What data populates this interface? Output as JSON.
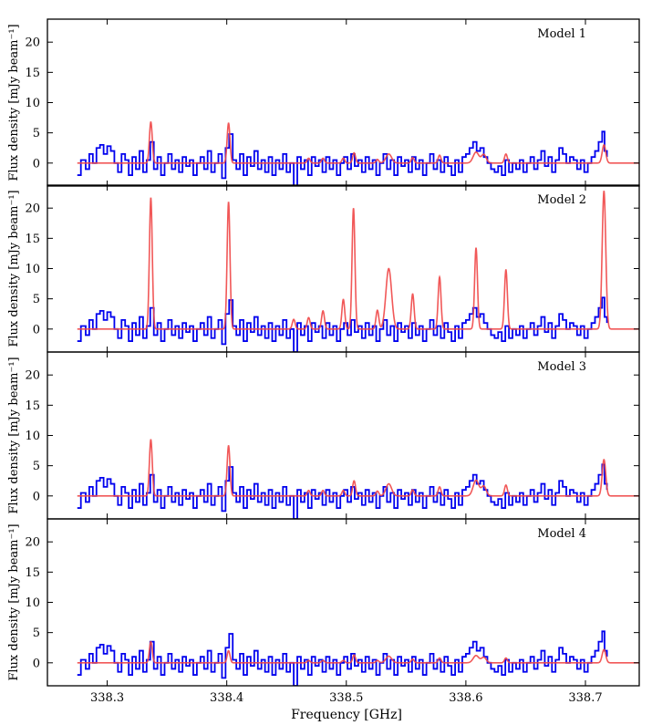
{
  "chart_data": {
    "type": "line",
    "xlabel": "Frequency [GHz]",
    "ylabel": "Flux density [mJy beam⁻¹]",
    "xlim": [
      338.25,
      338.745
    ],
    "ylim": [
      -3.8,
      23.8
    ],
    "x_ticks": [
      338.3,
      338.4,
      338.5,
      338.6,
      338.7
    ],
    "x_tick_labels": [
      "338.3",
      "338.4",
      "338.5",
      "338.6",
      "338.7"
    ],
    "y_ticks": [
      0,
      5,
      10,
      15,
      20
    ],
    "y_tick_labels": [
      "0",
      "5",
      "10",
      "15",
      "20"
    ],
    "observed": {
      "color": "#0000ee",
      "style": "steps",
      "x_start": 338.275,
      "x_end": 338.718,
      "anchors": [
        [
          338.275,
          -2.0
        ],
        [
          338.278,
          0.5
        ],
        [
          338.282,
          -1.0
        ],
        [
          338.285,
          1.5
        ],
        [
          338.288,
          0.0
        ],
        [
          338.291,
          2.5
        ],
        [
          338.294,
          3.0
        ],
        [
          338.297,
          1.5
        ],
        [
          338.3,
          2.8
        ],
        [
          338.303,
          2.0
        ],
        [
          338.306,
          0.0
        ],
        [
          338.309,
          -1.5
        ],
        [
          338.312,
          1.5
        ],
        [
          338.315,
          0.5
        ],
        [
          338.318,
          -2.0
        ],
        [
          338.321,
          1.0
        ],
        [
          338.324,
          -1.0
        ],
        [
          338.327,
          2.0
        ],
        [
          338.33,
          -1.5
        ],
        [
          338.333,
          0.5
        ],
        [
          338.336,
          3.5
        ],
        [
          338.339,
          -1.0
        ],
        [
          338.342,
          1.0
        ],
        [
          338.345,
          -2.0
        ],
        [
          338.348,
          0.0
        ],
        [
          338.351,
          1.5
        ],
        [
          338.354,
          -1.0
        ],
        [
          338.357,
          0.5
        ],
        [
          338.36,
          -1.5
        ],
        [
          338.363,
          1.0
        ],
        [
          338.366,
          -0.5
        ],
        [
          338.369,
          0.5
        ],
        [
          338.372,
          -2.0
        ],
        [
          338.375,
          0.0
        ],
        [
          338.378,
          1.0
        ],
        [
          338.381,
          -1.0
        ],
        [
          338.384,
          2.0
        ],
        [
          338.387,
          -1.5
        ],
        [
          338.39,
          0.0
        ],
        [
          338.393,
          1.5
        ],
        [
          338.396,
          -2.5
        ],
        [
          338.399,
          2.5
        ],
        [
          338.402,
          4.8
        ],
        [
          338.405,
          0.5
        ],
        [
          338.408,
          -1.0
        ],
        [
          338.411,
          1.5
        ],
        [
          338.414,
          -2.0
        ],
        [
          338.417,
          1.0
        ],
        [
          338.42,
          -0.5
        ],
        [
          338.423,
          2.0
        ],
        [
          338.426,
          -1.0
        ],
        [
          338.429,
          0.5
        ],
        [
          338.432,
          -1.5
        ],
        [
          338.435,
          1.0
        ],
        [
          338.438,
          -2.0
        ],
        [
          338.441,
          0.5
        ],
        [
          338.444,
          -1.0
        ],
        [
          338.447,
          1.5
        ],
        [
          338.45,
          -1.5
        ],
        [
          338.453,
          0.0
        ],
        [
          338.456,
          -3.8
        ],
        [
          338.459,
          1.0
        ],
        [
          338.462,
          -1.0
        ],
        [
          338.465,
          0.5
        ],
        [
          338.468,
          -2.0
        ],
        [
          338.471,
          1.0
        ],
        [
          338.474,
          -0.5
        ],
        [
          338.477,
          0.5
        ],
        [
          338.48,
          -1.5
        ],
        [
          338.483,
          1.0
        ],
        [
          338.486,
          -1.0
        ],
        [
          338.489,
          0.5
        ],
        [
          338.492,
          -2.0
        ],
        [
          338.495,
          0.0
        ],
        [
          338.498,
          1.0
        ],
        [
          338.501,
          -1.0
        ],
        [
          338.504,
          1.5
        ],
        [
          338.507,
          -0.5
        ],
        [
          338.51,
          0.5
        ],
        [
          338.513,
          -1.5
        ],
        [
          338.516,
          1.0
        ],
        [
          338.519,
          -1.0
        ],
        [
          338.522,
          0.5
        ],
        [
          338.525,
          -2.0
        ],
        [
          338.528,
          0.0
        ],
        [
          338.531,
          1.5
        ],
        [
          338.534,
          -1.0
        ],
        [
          338.537,
          0.5
        ],
        [
          338.54,
          -2.0
        ],
        [
          338.543,
          1.0
        ],
        [
          338.546,
          -0.5
        ],
        [
          338.549,
          0.5
        ],
        [
          338.552,
          -1.5
        ],
        [
          338.555,
          1.0
        ],
        [
          338.558,
          -1.0
        ],
        [
          338.561,
          0.5
        ],
        [
          338.564,
          -2.0
        ],
        [
          338.567,
          0.0
        ],
        [
          338.57,
          1.5
        ],
        [
          338.573,
          -1.0
        ],
        [
          338.576,
          0.5
        ],
        [
          338.579,
          -1.5
        ],
        [
          338.582,
          1.0
        ],
        [
          338.585,
          -0.5
        ],
        [
          338.588,
          -2.0
        ],
        [
          338.591,
          0.5
        ],
        [
          338.594,
          -1.5
        ],
        [
          338.597,
          1.0
        ],
        [
          338.6,
          1.5
        ],
        [
          338.603,
          2.5
        ],
        [
          338.606,
          3.5
        ],
        [
          338.609,
          2.0
        ],
        [
          338.612,
          2.5
        ],
        [
          338.615,
          1.0
        ],
        [
          338.618,
          0.0
        ],
        [
          338.621,
          -1.0
        ],
        [
          338.624,
          -1.5
        ],
        [
          338.627,
          -0.5
        ],
        [
          338.63,
          -2.0
        ],
        [
          338.633,
          0.5
        ],
        [
          338.636,
          -1.5
        ],
        [
          338.639,
          0.0
        ],
        [
          338.642,
          -1.0
        ],
        [
          338.645,
          0.5
        ],
        [
          338.648,
          -1.5
        ],
        [
          338.651,
          0.0
        ],
        [
          338.654,
          1.0
        ],
        [
          338.657,
          -1.0
        ],
        [
          338.66,
          0.5
        ],
        [
          338.663,
          2.0
        ],
        [
          338.666,
          -0.5
        ],
        [
          338.669,
          1.0
        ],
        [
          338.672,
          -1.5
        ],
        [
          338.675,
          0.5
        ],
        [
          338.678,
          2.5
        ],
        [
          338.681,
          1.5
        ],
        [
          338.684,
          0.0
        ],
        [
          338.687,
          1.0
        ],
        [
          338.69,
          0.5
        ],
        [
          338.693,
          -1.0
        ],
        [
          338.696,
          0.5
        ],
        [
          338.699,
          -1.5
        ],
        [
          338.702,
          0.0
        ],
        [
          338.705,
          1.0
        ],
        [
          338.708,
          2.0
        ],
        [
          338.711,
          3.5
        ],
        [
          338.714,
          5.2
        ],
        [
          338.716,
          2.0
        ],
        [
          338.718,
          1.0
        ]
      ]
    },
    "panels": [
      {
        "title": "Model 1",
        "model_color": "#f04646",
        "lines": [
          [
            338.3365,
            6.8,
            0.0012
          ],
          [
            338.4015,
            6.6,
            0.0012
          ],
          [
            338.4685,
            0.8,
            0.0012
          ],
          [
            338.4805,
            0.8,
            0.0012
          ],
          [
            338.4975,
            0.8,
            0.0012
          ],
          [
            338.5065,
            1.7,
            0.0012
          ],
          [
            338.526,
            0.6,
            0.0012
          ],
          [
            338.5355,
            1.5,
            0.0024
          ],
          [
            338.5555,
            0.9,
            0.0012
          ],
          [
            338.578,
            1.3,
            0.0012
          ],
          [
            338.6085,
            1.8,
            0.0024
          ],
          [
            338.615,
            1.4,
            0.002
          ],
          [
            338.6335,
            1.5,
            0.0012
          ],
          [
            338.7155,
            3.0,
            0.0015
          ]
        ]
      },
      {
        "title": "Model 2",
        "model_color": "#f04646",
        "lines": [
          [
            338.3365,
            21.7,
            0.0012
          ],
          [
            338.4015,
            21.0,
            0.0012
          ],
          [
            338.456,
            1.6,
            0.0012
          ],
          [
            338.4685,
            1.9,
            0.0012
          ],
          [
            338.4805,
            3.0,
            0.0012
          ],
          [
            338.4975,
            4.9,
            0.0012
          ],
          [
            338.506,
            20.0,
            0.0012
          ],
          [
            338.526,
            3.1,
            0.0012
          ],
          [
            338.5355,
            10.0,
            0.0024
          ],
          [
            338.5555,
            5.8,
            0.0012
          ],
          [
            338.578,
            8.6,
            0.0012
          ],
          [
            338.6085,
            13.4,
            0.0012
          ],
          [
            338.6335,
            9.8,
            0.0012
          ],
          [
            338.7155,
            22.8,
            0.0015
          ]
        ]
      },
      {
        "title": "Model 3",
        "model_color": "#f04646",
        "lines": [
          [
            338.3365,
            9.3,
            0.0012
          ],
          [
            338.4015,
            8.3,
            0.0012
          ],
          [
            338.4685,
            0.9,
            0.0012
          ],
          [
            338.4805,
            0.9,
            0.0012
          ],
          [
            338.4975,
            0.9,
            0.0012
          ],
          [
            338.5065,
            2.5,
            0.0012
          ],
          [
            338.526,
            0.8,
            0.0012
          ],
          [
            338.5355,
            2.0,
            0.0024
          ],
          [
            338.5555,
            1.0,
            0.0012
          ],
          [
            338.578,
            1.5,
            0.0012
          ],
          [
            338.6085,
            2.6,
            0.0024
          ],
          [
            338.615,
            1.6,
            0.002
          ],
          [
            338.6335,
            1.8,
            0.0012
          ],
          [
            338.7155,
            6.0,
            0.0015
          ]
        ]
      },
      {
        "title": "Model 4",
        "model_color": "#f04646",
        "lines": [
          [
            338.3365,
            3.5,
            0.0012
          ],
          [
            338.4015,
            2.0,
            0.0012
          ],
          [
            338.4685,
            0.4,
            0.0012
          ],
          [
            338.4805,
            0.4,
            0.0012
          ],
          [
            338.4975,
            0.4,
            0.0012
          ],
          [
            338.5065,
            1.3,
            0.0012
          ],
          [
            338.526,
            0.4,
            0.0012
          ],
          [
            338.5355,
            1.1,
            0.0024
          ],
          [
            338.5555,
            0.6,
            0.0012
          ],
          [
            338.578,
            0.8,
            0.0012
          ],
          [
            338.6085,
            1.2,
            0.0024
          ],
          [
            338.615,
            0.9,
            0.002
          ],
          [
            338.6335,
            0.8,
            0.0012
          ],
          [
            338.7155,
            2.2,
            0.0015
          ]
        ]
      }
    ]
  }
}
